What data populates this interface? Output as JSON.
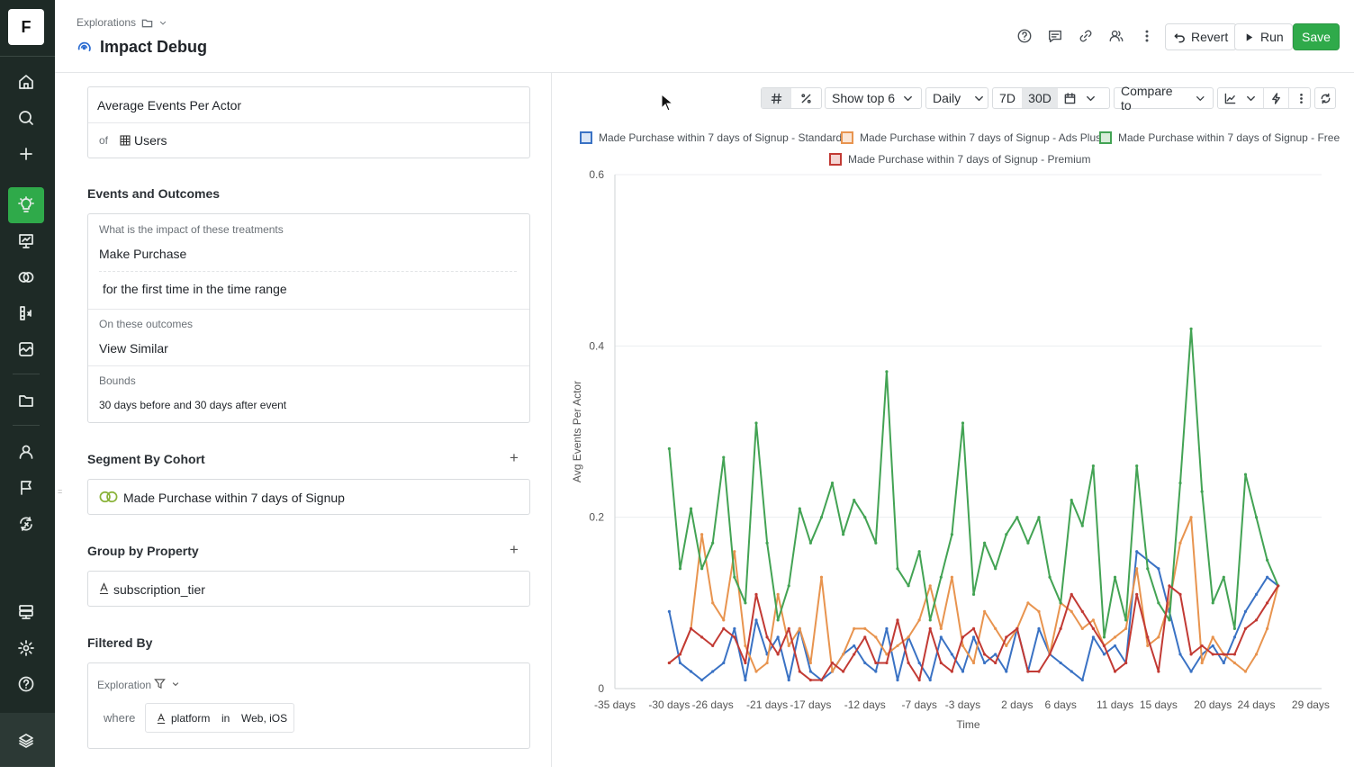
{
  "app": {
    "logo": "F"
  },
  "header": {
    "breadcrumb": "Explorations",
    "title": "Impact Debug",
    "revert_label": "Revert",
    "run_label": "Run",
    "save_label": "Save"
  },
  "metric": {
    "name": "Average Events Per Actor",
    "of_label": "of",
    "entity": "Users"
  },
  "events": {
    "section_title": "Events and Outcomes",
    "treatments_label": "What is the impact of these treatments",
    "treatment_event": "Make Purchase",
    "treatment_condition": "for the first time in the time range",
    "outcomes_label": "On these outcomes",
    "outcome_event": "View Similar",
    "bounds_label": "Bounds",
    "bounds_value": "30 days before and 30 days after event"
  },
  "segment": {
    "section_title": "Segment By Cohort",
    "cohort": "Made Purchase within 7 days of Signup"
  },
  "group": {
    "section_title": "Group by Property",
    "property": "subscription_tier"
  },
  "filter": {
    "section_title": "Filtered By",
    "scope": "Exploration",
    "where_label": "where",
    "property": "platform",
    "operator": "in",
    "value": "Web, iOS"
  },
  "toolbar": {
    "show_top": "Show top 6",
    "granularity": "Daily",
    "range_7d": "7D",
    "range_30d": "30D",
    "compare": "Compare to"
  },
  "colors": {
    "accent": "#2faa4a",
    "blue": "#3a72c4",
    "orange": "#e8944f",
    "green": "#43a354",
    "red": "#c23a34"
  },
  "chart_data": {
    "type": "line",
    "xlabel": "Time",
    "ylabel": "Avg Events Per Actor",
    "ylim": [
      0,
      0.6
    ],
    "yticks": [
      "0",
      "0.2",
      "0.4",
      "0.6"
    ],
    "xlim": [
      -35,
      30
    ],
    "xtick_values": [
      -35,
      -30,
      -26,
      -21,
      -17,
      -12,
      -7,
      -3,
      2,
      6,
      11,
      15,
      20,
      24,
      29
    ],
    "xtick_labels": [
      "-35 days",
      "-30 days",
      "-26 days",
      "-21 days",
      "-17 days",
      "-12 days",
      "-7 days",
      "-3 days",
      "2 days",
      "6 days",
      "11 days",
      "15 days",
      "20 days",
      "24 days",
      "29 days"
    ],
    "grid": "horizontal",
    "legend_position": "top",
    "series": [
      {
        "name": "Made Purchase within 7 days of Signup - Standard",
        "color": "#3a72c4",
        "x": [
          -30,
          -29,
          -28,
          -27,
          -26,
          -25,
          -24,
          -23,
          -22,
          -21,
          -20,
          -19,
          -18,
          -17,
          -16,
          -15,
          -14,
          -13,
          -12,
          -11,
          -10,
          -9,
          -8,
          -7,
          -6,
          -5,
          -4,
          -3,
          -2,
          -1,
          0,
          1,
          2,
          3,
          4,
          5,
          6,
          7,
          8,
          9,
          10,
          11,
          12,
          13,
          14,
          15,
          16,
          17,
          18,
          19,
          20,
          21,
          22,
          23,
          24,
          25,
          26
        ],
        "y": [
          0.09,
          0.03,
          0.02,
          0.01,
          0.02,
          0.03,
          0.07,
          0.01,
          0.08,
          0.04,
          0.06,
          0.01,
          0.07,
          0.02,
          0.01,
          0.02,
          0.04,
          0.05,
          0.03,
          0.02,
          0.07,
          0.01,
          0.06,
          0.03,
          0.01,
          0.06,
          0.04,
          0.02,
          0.06,
          0.03,
          0.04,
          0.02,
          0.07,
          0.02,
          0.07,
          0.04,
          0.03,
          0.02,
          0.01,
          0.06,
          0.04,
          0.05,
          0.03,
          0.16,
          0.15,
          0.14,
          0.09,
          0.04,
          0.02,
          0.04,
          0.05,
          0.03,
          0.06,
          0.09,
          0.11,
          0.13,
          0.12
        ]
      },
      {
        "name": "Made Purchase within 7 days of Signup - Ads Plus",
        "color": "#e8944f",
        "x": [
          -30,
          -29,
          -28,
          -27,
          -26,
          -25,
          -24,
          -23,
          -22,
          -21,
          -20,
          -19,
          -18,
          -17,
          -16,
          -15,
          -14,
          -13,
          -12,
          -11,
          -10,
          -9,
          -8,
          -7,
          -6,
          -5,
          -4,
          -3,
          -2,
          -1,
          0,
          1,
          2,
          3,
          4,
          5,
          6,
          7,
          8,
          9,
          10,
          11,
          12,
          13,
          14,
          15,
          16,
          17,
          18,
          19,
          20,
          21,
          22,
          23,
          24,
          25,
          26
        ],
        "y": [
          0.03,
          0.04,
          0.07,
          0.18,
          0.1,
          0.08,
          0.16,
          0.05,
          0.02,
          0.03,
          0.11,
          0.05,
          0.07,
          0.03,
          0.13,
          0.02,
          0.04,
          0.07,
          0.07,
          0.06,
          0.04,
          0.05,
          0.06,
          0.08,
          0.12,
          0.07,
          0.13,
          0.05,
          0.03,
          0.09,
          0.07,
          0.05,
          0.07,
          0.1,
          0.09,
          0.04,
          0.1,
          0.09,
          0.07,
          0.08,
          0.05,
          0.06,
          0.07,
          0.14,
          0.05,
          0.06,
          0.1,
          0.17,
          0.2,
          0.03,
          0.06,
          0.04,
          0.03,
          0.02,
          0.04,
          0.07,
          0.12
        ]
      },
      {
        "name": "Made Purchase within 7 days of Signup - Free",
        "color": "#43a354",
        "x": [
          -30,
          -29,
          -28,
          -27,
          -26,
          -25,
          -24,
          -23,
          -22,
          -21,
          -20,
          -19,
          -18,
          -17,
          -16,
          -15,
          -14,
          -13,
          -12,
          -11,
          -10,
          -9,
          -8,
          -7,
          -6,
          -5,
          -4,
          -3,
          -2,
          -1,
          0,
          1,
          2,
          3,
          4,
          5,
          6,
          7,
          8,
          9,
          10,
          11,
          12,
          13,
          14,
          15,
          16,
          17,
          18,
          19,
          20,
          21,
          22,
          23,
          24,
          25,
          26
        ],
        "y": [
          0.28,
          0.14,
          0.21,
          0.14,
          0.17,
          0.27,
          0.13,
          0.1,
          0.31,
          0.17,
          0.08,
          0.12,
          0.21,
          0.17,
          0.2,
          0.24,
          0.18,
          0.22,
          0.2,
          0.17,
          0.37,
          0.14,
          0.12,
          0.16,
          0.08,
          0.13,
          0.18,
          0.31,
          0.11,
          0.17,
          0.14,
          0.18,
          0.2,
          0.17,
          0.2,
          0.13,
          0.1,
          0.22,
          0.19,
          0.26,
          0.06,
          0.13,
          0.08,
          0.26,
          0.14,
          0.1,
          0.08,
          0.24,
          0.42,
          0.23,
          0.1,
          0.13,
          0.07,
          0.25,
          0.2,
          0.15,
          0.12
        ]
      },
      {
        "name": "Made Purchase within 7 days of Signup - Premium",
        "color": "#c23a34",
        "x": [
          -30,
          -29,
          -28,
          -27,
          -26,
          -25,
          -24,
          -23,
          -22,
          -21,
          -20,
          -19,
          -18,
          -17,
          -16,
          -15,
          -14,
          -13,
          -12,
          -11,
          -10,
          -9,
          -8,
          -7,
          -6,
          -5,
          -4,
          -3,
          -2,
          -1,
          0,
          1,
          2,
          3,
          4,
          5,
          6,
          7,
          8,
          9,
          10,
          11,
          12,
          13,
          14,
          15,
          16,
          17,
          18,
          19,
          20,
          21,
          22,
          23,
          24,
          25,
          26
        ],
        "y": [
          0.03,
          0.04,
          0.07,
          0.06,
          0.05,
          0.07,
          0.06,
          0.03,
          0.11,
          0.06,
          0.04,
          0.07,
          0.02,
          0.01,
          0.01,
          0.03,
          0.02,
          0.04,
          0.06,
          0.03,
          0.03,
          0.08,
          0.03,
          0.01,
          0.07,
          0.03,
          0.02,
          0.06,
          0.07,
          0.04,
          0.03,
          0.06,
          0.07,
          0.02,
          0.02,
          0.04,
          0.07,
          0.11,
          0.09,
          0.07,
          0.05,
          0.02,
          0.03,
          0.11,
          0.06,
          0.02,
          0.12,
          0.11,
          0.04,
          0.05,
          0.04,
          0.04,
          0.04,
          0.07,
          0.08,
          0.1,
          0.12
        ]
      }
    ]
  }
}
